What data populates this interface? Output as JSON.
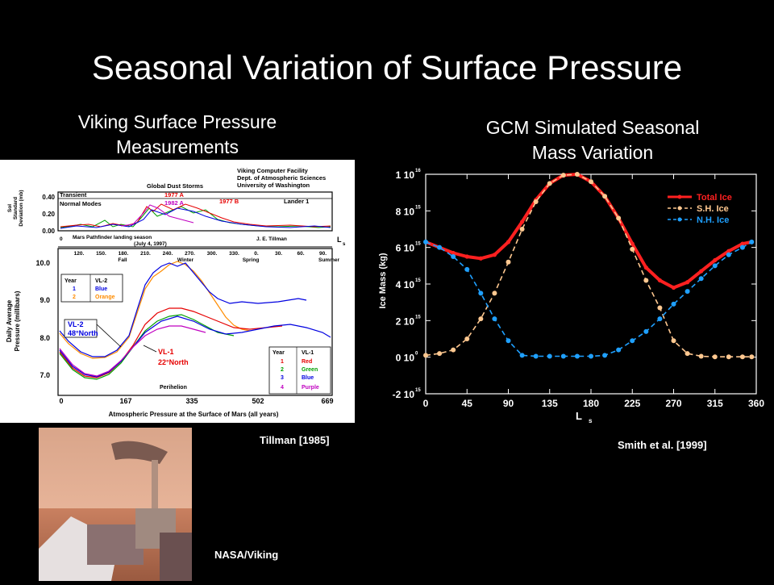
{
  "slide": {
    "title": "Seasonal Variation of Surface Pressure",
    "left_heading": [
      "Viking Surface Pressure",
      "Measurements"
    ],
    "right_heading": [
      "GCM Simulated Seasonal",
      "Mass Variation"
    ],
    "credits": {
      "tillman": "Tillman  [1985]",
      "smith": "Smith et al. [1999]",
      "nasa": "NASA/Viking"
    }
  },
  "viking_figure": {
    "header": [
      "Viking Computer Facility",
      "Dept. of Atmospheric Sciences",
      "University of Washington"
    ],
    "global_dust_storms": "Global Dust Storms",
    "storm_labels": [
      "1977 A",
      "1982 A",
      "1977 B"
    ],
    "transient_label": "Transient",
    "normal_modes_label": "Normal Modes",
    "lander_label": "Lander 1",
    "top_ylabel": [
      "Sol",
      "Standard",
      "Deviation (mb)"
    ],
    "top_yticks": [
      "0.40",
      "0.20",
      "0.00"
    ],
    "pathfinder": [
      "Mars Pathfinder landing season",
      "(July 4, 1997)"
    ],
    "author": "J. E. Tillman",
    "ls_label": "L",
    "ls_sub": "s",
    "ls_ticks": [
      "120.",
      "150.",
      "180.",
      "210.",
      "240.",
      "270.",
      "300.",
      "330.",
      "0.",
      "30.",
      "60.",
      "90."
    ],
    "seasons": [
      "Fall",
      "Winter",
      "Spring",
      "Summer"
    ],
    "main_ylabel": [
      "Daily Average",
      "Pressure (millibars)"
    ],
    "main_yticks": [
      "10.0",
      "9.0",
      "8.0",
      "7.0"
    ],
    "xticks": [
      "0",
      "167",
      "335",
      "502",
      "669"
    ],
    "xlabel": "Atmospheric Pressure at the Surface of Mars (all years)",
    "vl2_table": {
      "head": [
        "Year",
        "VL-2"
      ],
      "rows": [
        [
          "1",
          "Blue"
        ],
        [
          "2",
          "Orange"
        ]
      ]
    },
    "vl1_table": {
      "head": [
        "Year",
        "VL-1"
      ],
      "rows": [
        [
          "1",
          "Red"
        ],
        [
          "2",
          "Green"
        ],
        [
          "3",
          "Blue"
        ],
        [
          "4",
          "Purple"
        ]
      ]
    },
    "vl2_label": [
      "VL-2",
      "48°North"
    ],
    "vl1_label": [
      "VL-1",
      "22°North"
    ],
    "perihelion": "Perihelion",
    "colors": {
      "red": "#e60000",
      "green": "#00a000",
      "blue": "#0000e0",
      "orange": "#ff8c00",
      "purple": "#c000c0"
    }
  },
  "chart_data": {
    "type": "line",
    "title": "",
    "xlabel": "L",
    "xlabel_sub": "s",
    "ylabel": "Ice Mass (kg)",
    "xlim": [
      0,
      360
    ],
    "ylim": [
      -2000000000000000.0,
      1e+16
    ],
    "x_ticks": [
      "0",
      "45",
      "90",
      "135",
      "180",
      "225",
      "270",
      "315",
      "360"
    ],
    "y_ticks": [
      {
        "mant": "-2 10",
        "exp": "15"
      },
      {
        "mant": "0 10",
        "exp": "0"
      },
      {
        "mant": "2 10",
        "exp": "15"
      },
      {
        "mant": "4 10",
        "exp": "15"
      },
      {
        "mant": "6 10",
        "exp": "15"
      },
      {
        "mant": "8 10",
        "exp": "15"
      },
      {
        "mant": "1 10",
        "exp": "16"
      }
    ],
    "legend_position": "top-right",
    "series": [
      {
        "name": "Total Ice",
        "color": "#ff2020",
        "style": "solid",
        "x": [
          0,
          15,
          30,
          45,
          60,
          75,
          90,
          105,
          120,
          135,
          150,
          165,
          180,
          195,
          210,
          225,
          240,
          255,
          270,
          285,
          300,
          315,
          330,
          345,
          355
        ],
        "y": [
          6300000000000000.0,
          6000000000000000.0,
          5700000000000000.0,
          5500000000000000.0,
          5400000000000000.0,
          5600000000000000.0,
          6300000000000000.0,
          7400000000000000.0,
          8600000000000000.0,
          9500000000000000.0,
          9950000000000000.0,
          1e+16,
          9600000000000000.0,
          8800000000000000.0,
          7600000000000000.0,
          6200000000000000.0,
          4900000000000000.0,
          4200000000000000.0,
          3800000000000000.0,
          4100000000000000.0,
          4700000000000000.0,
          5300000000000000.0,
          5800000000000000.0,
          6200000000000000.0,
          6300000000000000.0
        ]
      },
      {
        "name": "S.H. Ice",
        "color": "#ffc890",
        "style": "dashed",
        "x": [
          0,
          15,
          30,
          45,
          60,
          75,
          90,
          105,
          120,
          135,
          150,
          165,
          180,
          195,
          210,
          225,
          240,
          255,
          270,
          285,
          300,
          315,
          330,
          345,
          355
        ],
        "y": [
          100000000000000.0,
          200000000000000.0,
          400000000000000.0,
          1000000000000000.0,
          2100000000000000.0,
          3500000000000000.0,
          5200000000000000.0,
          7000000000000000.0,
          8500000000000000.0,
          9500000000000000.0,
          9950000000000000.0,
          1e+16,
          9600000000000000.0,
          8800000000000000.0,
          7600000000000000.0,
          5900000000000000.0,
          4200000000000000.0,
          2700000000000000.0,
          900000000000000.0,
          200000000000000.0,
          50000000000000.0,
          20000000000000.0,
          20000000000000.0,
          20000000000000.0,
          20000000000000.0
        ]
      },
      {
        "name": "N.H. Ice",
        "color": "#1fa0ff",
        "style": "dashed",
        "x": [
          0,
          15,
          30,
          45,
          60,
          75,
          90,
          105,
          120,
          135,
          150,
          165,
          180,
          195,
          210,
          225,
          240,
          255,
          270,
          285,
          300,
          315,
          330,
          345,
          355
        ],
        "y": [
          6300000000000000.0,
          6000000000000000.0,
          5500000000000000.0,
          4800000000000000.0,
          3500000000000000.0,
          2100000000000000.0,
          900000000000000.0,
          100000000000000.0,
          50000000000000.0,
          50000000000000.0,
          50000000000000.0,
          50000000000000.0,
          50000000000000.0,
          100000000000000.0,
          400000000000000.0,
          900000000000000.0,
          1400000000000000.0,
          2100000000000000.0,
          2900000000000000.0,
          3600000000000000.0,
          4300000000000000.0,
          5000000000000000.0,
          5600000000000000.0,
          6000000000000000.0,
          6300000000000000.0
        ]
      }
    ]
  }
}
